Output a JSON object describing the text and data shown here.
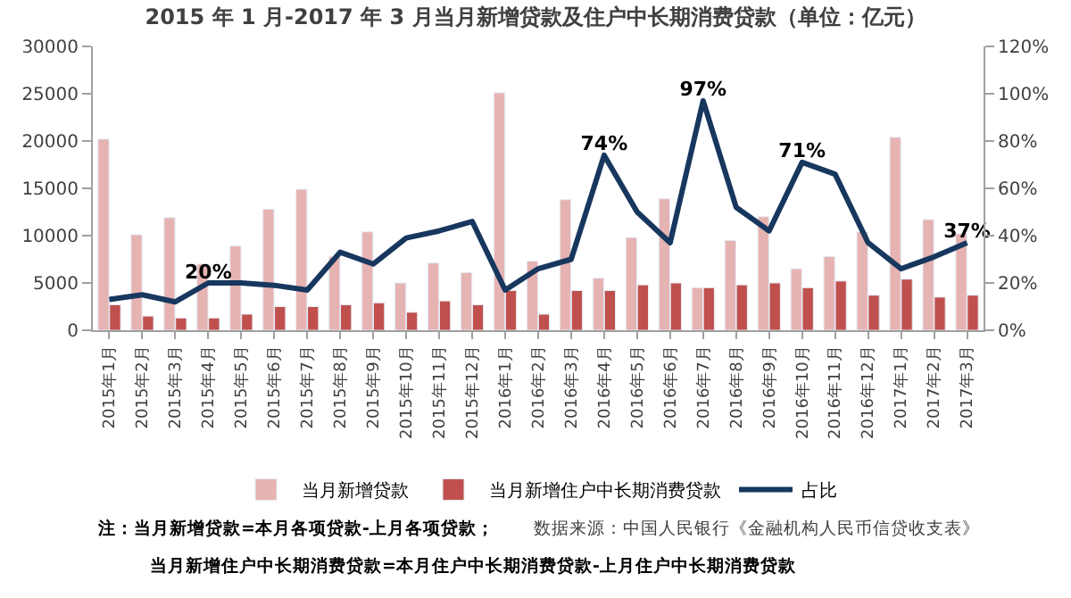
{
  "chart_data": {
    "type": "bar",
    "title": "2015 年 1 月-2017 年 3 月当月新增贷款及住户中长期消费贷款（单位：亿元）",
    "categories": [
      "2015年1月",
      "2015年2月",
      "2015年3月",
      "2015年4月",
      "2015年5月",
      "2015年6月",
      "2015年7月",
      "2015年8月",
      "2015年9月",
      "2015年10月",
      "2015年11月",
      "2015年12月",
      "2016年1月",
      "2016年2月",
      "2016年3月",
      "2016年4月",
      "2016年5月",
      "2016年6月",
      "2016年7月",
      "2016年8月",
      "2016年9月",
      "2016年10月",
      "2016年11月",
      "2016年12月",
      "2017年1月",
      "2017年2月",
      "2017年3月"
    ],
    "series": [
      {
        "name": "当月新增贷款",
        "color": "#e6b3b3",
        "values": [
          20200,
          10100,
          11900,
          7000,
          8900,
          12800,
          14900,
          7800,
          10400,
          5000,
          7100,
          6100,
          25100,
          7300,
          13800,
          5500,
          9800,
          13900,
          4500,
          9500,
          12000,
          6500,
          7800,
          10400,
          20400,
          11700,
          10200
        ]
      },
      {
        "name": "当月新增住户中长期消费贷款",
        "color": "#c0504d",
        "values": [
          2700,
          1500,
          1300,
          1300,
          1700,
          2500,
          2500,
          2700,
          2900,
          1900,
          3100,
          2700,
          4200,
          1700,
          4200,
          4200,
          4800,
          5000,
          4500,
          4800,
          5000,
          4500,
          5200,
          3700,
          5400,
          3500,
          3700
        ]
      },
      {
        "name": "占比",
        "color": "#17375e",
        "type": "line",
        "axis": "y2",
        "values": [
          13,
          15,
          12,
          20,
          20,
          19,
          17,
          33,
          28,
          39,
          42,
          46,
          17,
          26,
          30,
          74,
          50,
          37,
          97,
          52,
          42,
          71,
          66,
          37,
          26,
          31,
          37
        ],
        "value_labels": [
          null,
          null,
          null,
          "20%",
          null,
          null,
          null,
          null,
          null,
          null,
          null,
          null,
          null,
          null,
          null,
          "74%",
          null,
          null,
          "97%",
          null,
          null,
          "71%",
          null,
          null,
          null,
          null,
          "37%"
        ]
      }
    ],
    "ylim": [
      0,
      30000
    ],
    "yticks": [
      0,
      5000,
      10000,
      15000,
      20000,
      25000,
      30000
    ],
    "y2lim": [
      0,
      120
    ],
    "y2ticks": [
      {
        "value": 0,
        "label": "0%"
      },
      {
        "value": 20,
        "label": "20%"
      },
      {
        "value": 40,
        "label": "40%"
      },
      {
        "value": 60,
        "label": "60%"
      },
      {
        "value": 80,
        "label": "80%"
      },
      {
        "value": 100,
        "label": "100%"
      },
      {
        "value": 120,
        "label": "120%"
      }
    ],
    "legend": "bottom",
    "marker": "none",
    "annotations": [
      "注：当月新增贷款=本月各项贷款-上月各项贷款；",
      "数据来源：中国人民银行《金融机构人民币信贷收支表》",
      "当月新增住户中长期消费贷款=本月住户中长期消费贷款-上月住户中长期消费贷款"
    ]
  }
}
